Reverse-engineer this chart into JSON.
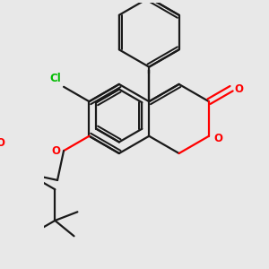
{
  "background_color": "#e8e8e8",
  "bond_color": "#1a1a1a",
  "oxygen_color": "#ff0000",
  "chlorine_color": "#00bb00",
  "lw": 1.6,
  "figsize": [
    3.0,
    3.0
  ],
  "dpi": 100,
  "xlim": [
    -1.2,
    2.0
  ],
  "ylim": [
    -1.8,
    2.4
  ]
}
